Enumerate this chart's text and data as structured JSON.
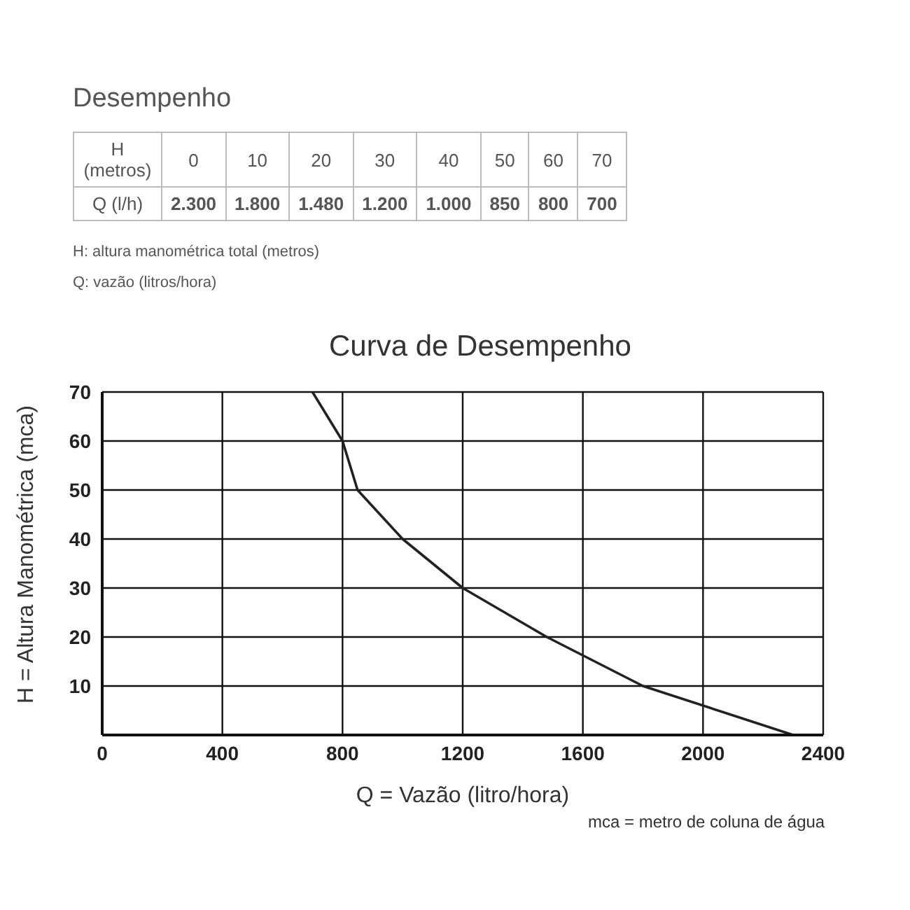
{
  "chart_data": {
    "type": "line",
    "subtitle": "Desempenho",
    "title": "Curva de Desempenho",
    "xlabel": "Q = Vazão (litro/hora)",
    "ylabel": "H = Altura Manométrica (mca)",
    "x": [
      2300,
      1800,
      1480,
      1200,
      1000,
      850,
      800,
      700
    ],
    "series": [
      {
        "color": "#222222",
        "values": [
          0,
          10,
          20,
          30,
          40,
          50,
          60,
          70
        ]
      }
    ],
    "xlim": [
      0,
      2400
    ],
    "xticks": [
      0,
      400,
      800,
      1200,
      1600,
      2000,
      2400
    ],
    "ylim": [
      0,
      70
    ],
    "yticks": [
      {
        "value": 0,
        "label": null
      },
      10,
      20,
      30,
      40,
      50,
      60,
      70
    ],
    "grid": true,
    "marker": "none",
    "line_style": "solid",
    "annotations": [
      "H (metros)",
      "0",
      "10",
      "20",
      "30",
      "40",
      "50",
      "60",
      "70",
      "Q (l/h)",
      "2.300",
      "1.800",
      "1.480",
      "1.200",
      "1.000",
      "850",
      "800",
      "700",
      "H: altura manométrica total (metros)",
      "Q: vazão (litros/hora)",
      "mca = metro de coluna de água"
    ]
  }
}
